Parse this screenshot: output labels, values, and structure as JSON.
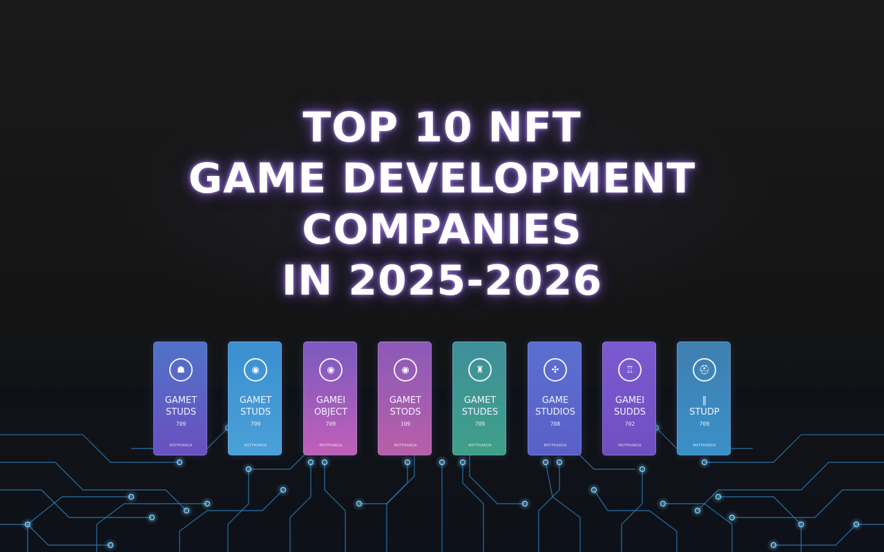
{
  "title": {
    "lines": [
      "TOP 10 NFT",
      "GAME DEVELOPMENT",
      "COMPANIES",
      "IN 2025-2026"
    ]
  },
  "cards": [
    {
      "icon": "gamepad-icon",
      "glyph": "☗",
      "name": "GAMET\nSTUDS",
      "number": "709",
      "footer": "MSTPHARDA",
      "color_top": "#4f73c8",
      "color_bottom": "#6a4fc0"
    },
    {
      "icon": "target-icon",
      "glyph": "◉",
      "name": "GAMET\nSTUDS",
      "number": "709",
      "footer": "MSTPHARDA",
      "color_top": "#3b8fd0",
      "color_bottom": "#4aa0d8"
    },
    {
      "icon": "target-icon",
      "glyph": "◉",
      "name": "GAMEI\nOBJECT",
      "number": "709",
      "footer": "MSTPHARDA",
      "color_top": "#7a5ac0",
      "color_bottom": "#c05fb8"
    },
    {
      "icon": "target-icon",
      "glyph": "◉",
      "name": "GAMET\nSTODS",
      "number": "109",
      "footer": "MSTPHARDA",
      "color_top": "#8a5ab8",
      "color_bottom": "#b85fa8"
    },
    {
      "icon": "castle-icon",
      "glyph": "♜",
      "name": "GAMET\nSTUDES",
      "number": "709",
      "footer": "MSTPHARDA",
      "color_top": "#3f8f9a",
      "color_bottom": "#3fa088"
    },
    {
      "icon": "controller-icon",
      "glyph": "✣",
      "name": "GAME\nSTUDIOS",
      "number": "708",
      "footer": "MSTPHARDA",
      "color_top": "#5a6fd0",
      "color_bottom": "#5a60c8"
    },
    {
      "icon": "castle-icon",
      "glyph": "♖",
      "name": "GAMEI\nSUDDS",
      "number": "702",
      "footer": "MSTPHARDA",
      "color_top": "#7a5ad0",
      "color_bottom": "#6f4fc0"
    },
    {
      "icon": "helmet-icon",
      "glyph": "⛑",
      "name": "‖\nSTUDP",
      "number": "709",
      "footer": "MSTPHARDA",
      "color_top": "#3f7fb0",
      "color_bottom": "#3a90c8"
    }
  ],
  "colors": {
    "background": "#161616",
    "title_glow": "#a07cf0",
    "circuit": "#3aa0e0"
  }
}
